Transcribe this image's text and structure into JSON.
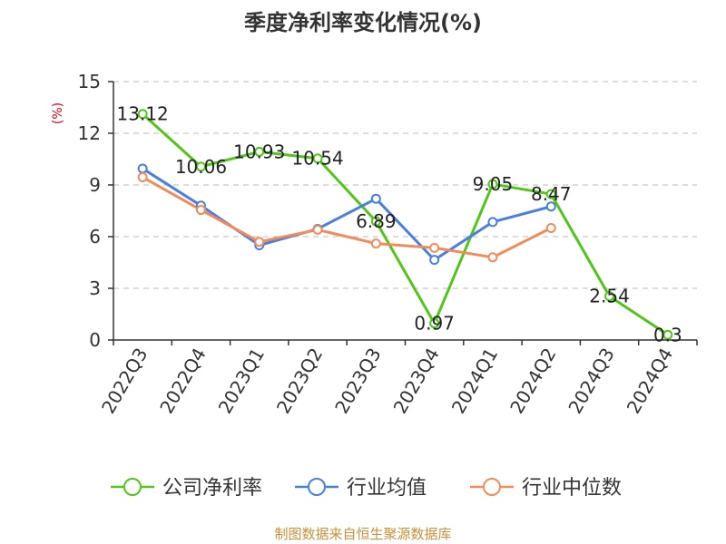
{
  "chart_data": {
    "type": "line",
    "title": "季度净利率变化情况(%)",
    "ylabel": "(%)",
    "xlabel": "",
    "categories": [
      "2022Q3",
      "2022Q4",
      "2023Q1",
      "2023Q2",
      "2023Q3",
      "2023Q4",
      "2024Q1",
      "2024Q2",
      "2024Q3",
      "2024Q4"
    ],
    "ylim": [
      0,
      15
    ],
    "yticks": [
      0,
      3,
      6,
      9,
      12,
      15
    ],
    "grid": "horizontal-dashed",
    "legend_position": "bottom",
    "series": [
      {
        "name": "公司净利率",
        "color": "#52c41a",
        "values": [
          13.12,
          10.06,
          10.93,
          10.54,
          6.89,
          0.97,
          9.05,
          8.47,
          2.54,
          0.3
        ],
        "labels": [
          "13.12",
          "10.06",
          "10.93",
          "10.54",
          "6.89",
          "0.97",
          "9.05",
          "8.47",
          "2.54",
          "0.3"
        ]
      },
      {
        "name": "行业均值",
        "color": "#4a7fdc",
        "values": [
          9.95,
          7.8,
          5.5,
          6.45,
          8.2,
          4.65,
          6.85,
          7.75,
          null,
          null
        ]
      },
      {
        "name": "行业中位数",
        "color": "#f28b5b",
        "values": [
          9.45,
          7.55,
          5.7,
          6.4,
          5.6,
          5.35,
          4.8,
          6.5,
          null,
          null
        ]
      }
    ]
  },
  "source": "制图数据来自恒生聚源数据库"
}
